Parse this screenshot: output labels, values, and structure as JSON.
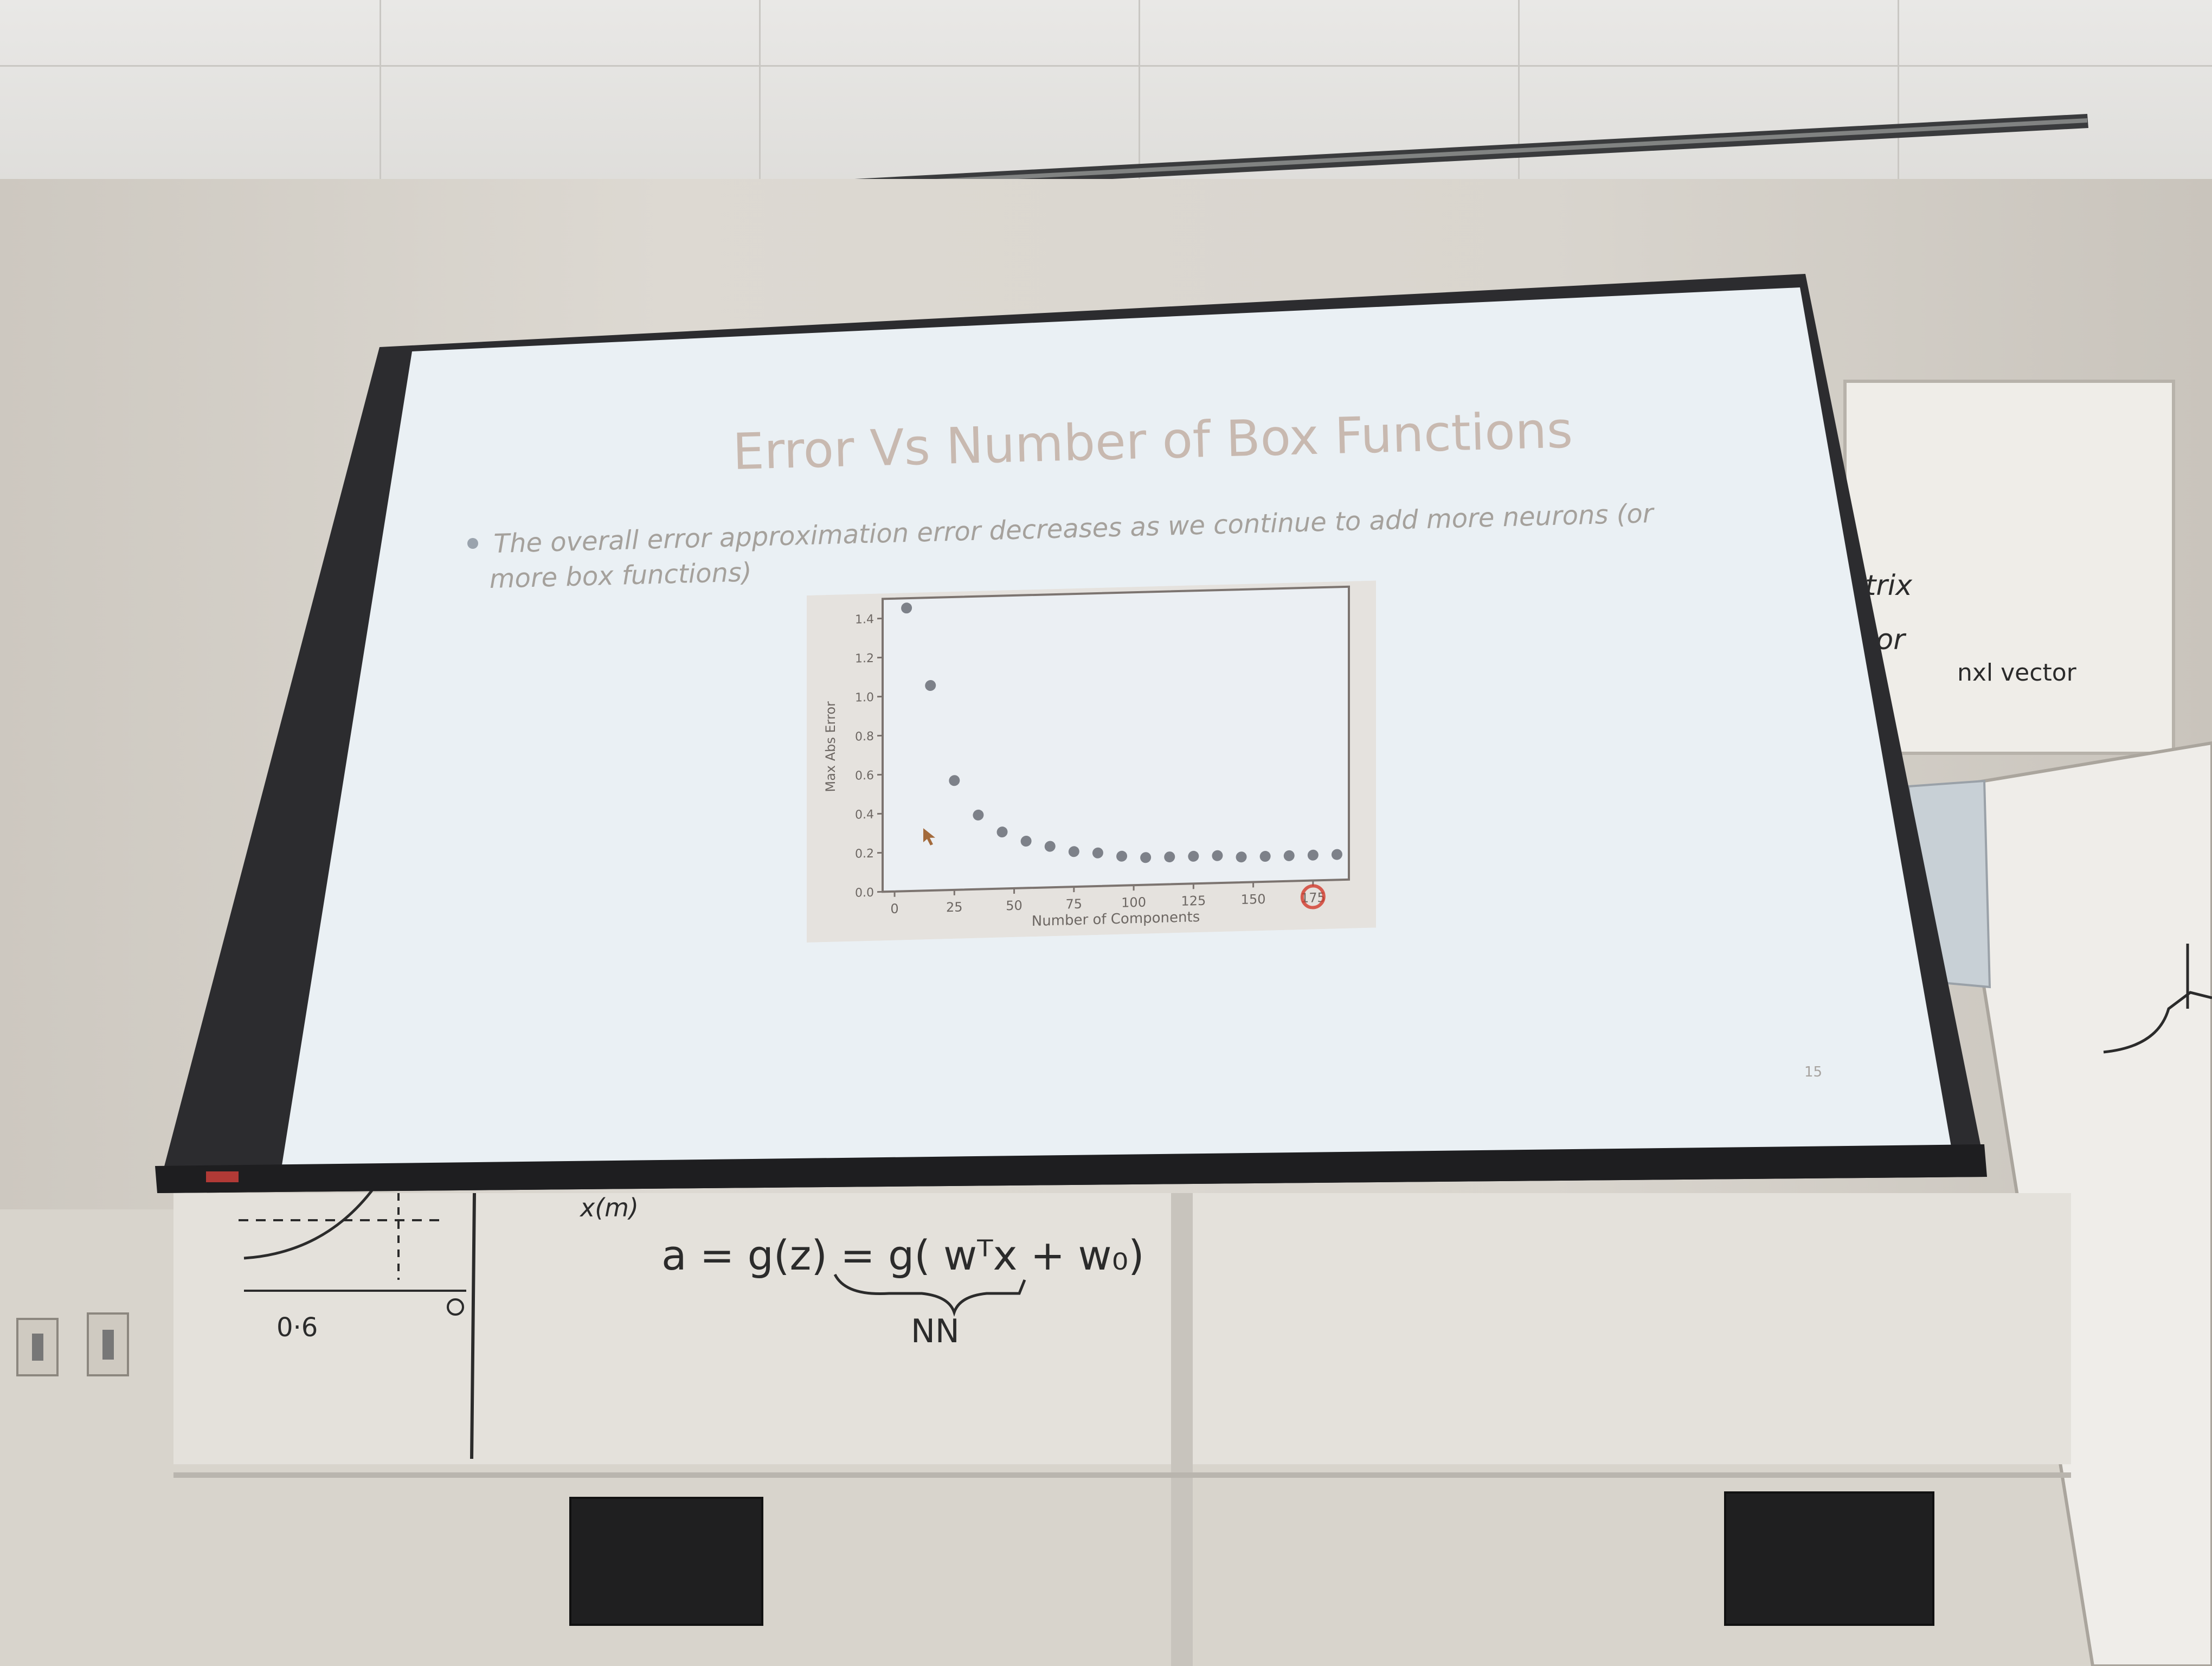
{
  "slide": {
    "title": "Error Vs Number of Box Functions",
    "bullet_line1": "The overall error approximation error decreases as we continue to add more neurons (or",
    "bullet_line2": "more box functions)",
    "page_number": "15"
  },
  "whiteboard": {
    "right_text_1": "trix",
    "right_text_2": "tor",
    "right_text_3": "nxl vector",
    "formula": "a = g(z) = g( wᵀx + w₀)",
    "formula_label": "NN",
    "left_label": "x(m)",
    "left_value": "0·6"
  },
  "colors": {
    "slide_bg": "#eaf0f4",
    "marker": "#7d8189",
    "highlight": "#d23a2a"
  },
  "chart_data": {
    "type": "scatter",
    "xlabel": "Number of Components",
    "ylabel": "Max Abs Error",
    "xlim": [
      -5,
      190
    ],
    "ylim": [
      0,
      1.5
    ],
    "xticks": [
      "0",
      "25",
      "50",
      "75",
      "100",
      "125",
      "150",
      "175"
    ],
    "yticks": [
      "0.0",
      "0.2",
      "0.4",
      "0.6",
      "0.8",
      "1.0",
      "1.2",
      "1.4"
    ],
    "x": [
      5,
      15,
      25,
      35,
      45,
      55,
      65,
      75,
      85,
      95,
      105,
      115,
      125,
      135,
      145,
      155,
      165,
      175,
      185
    ],
    "y": [
      1.45,
      1.05,
      0.56,
      0.38,
      0.29,
      0.24,
      0.21,
      0.18,
      0.17,
      0.15,
      0.14,
      0.14,
      0.14,
      0.14,
      0.13,
      0.13,
      0.13,
      0.13,
      0.13
    ],
    "grid": false
  }
}
